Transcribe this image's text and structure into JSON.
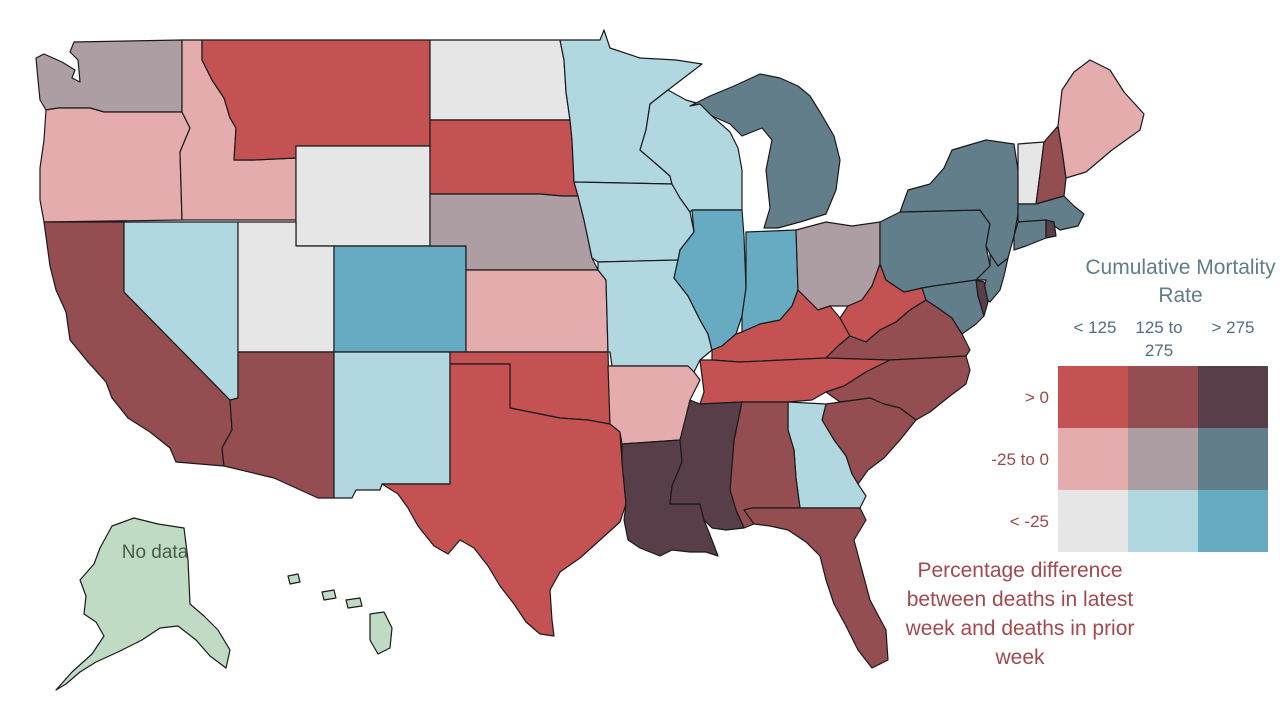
{
  "legend": {
    "title": "Cumulative Mortality Rate",
    "columns": [
      "< 125",
      "125 to 275",
      "> 275"
    ],
    "rows": [
      "> 0",
      "-25 to 0",
      "< -25"
    ],
    "colors": [
      [
        "#c45253",
        "#944d50",
        "#573e48"
      ],
      [
        "#e4acac",
        "#ad9ea3",
        "#627e8b"
      ],
      [
        "#e6e6e6",
        "#b1d7e0",
        "#66abc2"
      ]
    ]
  },
  "caption": "Percentage difference between deaths in latest week and deaths in prior week",
  "no_data_label": "No data",
  "no_data_color": "#bfdbc3",
  "states": [
    {
      "name": "Washington",
      "fill": "#ad9ea3"
    },
    {
      "name": "Oregon",
      "fill": "#e4acac"
    },
    {
      "name": "California",
      "fill": "#944d50"
    },
    {
      "name": "Idaho",
      "fill": "#e4acac"
    },
    {
      "name": "Nevada",
      "fill": "#b1d7e0"
    },
    {
      "name": "Montana",
      "fill": "#c45253"
    },
    {
      "name": "Wyoming",
      "fill": "#e6e6e6"
    },
    {
      "name": "Utah",
      "fill": "#e6e6e6"
    },
    {
      "name": "Arizona",
      "fill": "#944d50"
    },
    {
      "name": "Colorado",
      "fill": "#66abc2"
    },
    {
      "name": "New Mexico",
      "fill": "#b1d7e0"
    },
    {
      "name": "North Dakota",
      "fill": "#e6e6e6"
    },
    {
      "name": "South Dakota",
      "fill": "#c45253"
    },
    {
      "name": "Nebraska",
      "fill": "#ad9ea3"
    },
    {
      "name": "Kansas",
      "fill": "#e4acac"
    },
    {
      "name": "Oklahoma",
      "fill": "#c45253"
    },
    {
      "name": "Texas",
      "fill": "#c45253"
    },
    {
      "name": "Minnesota",
      "fill": "#b1d7e0"
    },
    {
      "name": "Iowa",
      "fill": "#b1d7e0"
    },
    {
      "name": "Missouri",
      "fill": "#b1d7e0"
    },
    {
      "name": "Arkansas",
      "fill": "#e4acac"
    },
    {
      "name": "Louisiana",
      "fill": "#573e48"
    },
    {
      "name": "Wisconsin",
      "fill": "#b1d7e0"
    },
    {
      "name": "Illinois",
      "fill": "#66abc2"
    },
    {
      "name": "Michigan",
      "fill": "#627e8b"
    },
    {
      "name": "Indiana",
      "fill": "#66abc2"
    },
    {
      "name": "Ohio",
      "fill": "#ad9ea3"
    },
    {
      "name": "Kentucky",
      "fill": "#c45253"
    },
    {
      "name": "Tennessee",
      "fill": "#c45253"
    },
    {
      "name": "Mississippi",
      "fill": "#573e48"
    },
    {
      "name": "Alabama",
      "fill": "#944d50"
    },
    {
      "name": "Georgia",
      "fill": "#b1d7e0"
    },
    {
      "name": "Florida",
      "fill": "#944d50"
    },
    {
      "name": "South Carolina",
      "fill": "#944d50"
    },
    {
      "name": "North Carolina",
      "fill": "#944d50"
    },
    {
      "name": "Virginia",
      "fill": "#944d50"
    },
    {
      "name": "West Virginia",
      "fill": "#c45253"
    },
    {
      "name": "Pennsylvania",
      "fill": "#627e8b"
    },
    {
      "name": "New York",
      "fill": "#627e8b"
    },
    {
      "name": "New Jersey",
      "fill": "#627e8b"
    },
    {
      "name": "Maryland",
      "fill": "#627e8b"
    },
    {
      "name": "Delaware",
      "fill": "#573e48"
    },
    {
      "name": "Vermont",
      "fill": "#e6e6e6"
    },
    {
      "name": "New Hampshire",
      "fill": "#944d50"
    },
    {
      "name": "Maine",
      "fill": "#e4acac"
    },
    {
      "name": "Massachusetts",
      "fill": "#627e8b"
    },
    {
      "name": "Connecticut",
      "fill": "#627e8b"
    },
    {
      "name": "Rhode Island",
      "fill": "#573e48"
    },
    {
      "name": "Alaska",
      "fill": "#bfdbc3"
    },
    {
      "name": "Hawaii",
      "fill": "#bfdbc3"
    }
  ]
}
